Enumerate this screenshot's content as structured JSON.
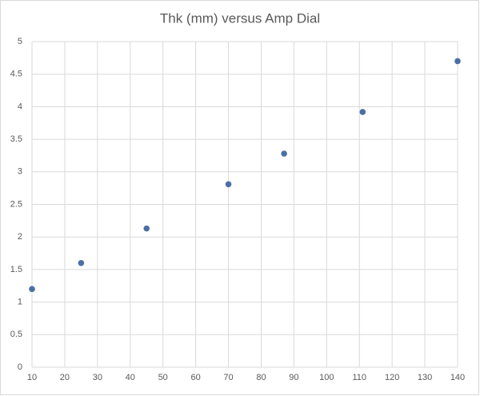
{
  "chart_data": {
    "type": "scatter",
    "title": "Thk (mm) versus Amp Dial",
    "series": [
      {
        "name": "Thk (mm)",
        "color": "#4a6fa5",
        "x": [
          10,
          25,
          45,
          70,
          87,
          111,
          140
        ],
        "values": [
          1.2,
          1.6,
          2.13,
          2.81,
          3.28,
          3.92,
          4.7
        ]
      }
    ],
    "xlim": [
      10,
      140
    ],
    "xticks": [
      10,
      20,
      30,
      40,
      50,
      60,
      70,
      80,
      90,
      100,
      110,
      120,
      130,
      140
    ],
    "ylim": [
      0,
      5
    ],
    "yticks": [
      0,
      0.5,
      1,
      1.5,
      2,
      2.5,
      3,
      3.5,
      4,
      4.5,
      5
    ],
    "grid": true
  }
}
